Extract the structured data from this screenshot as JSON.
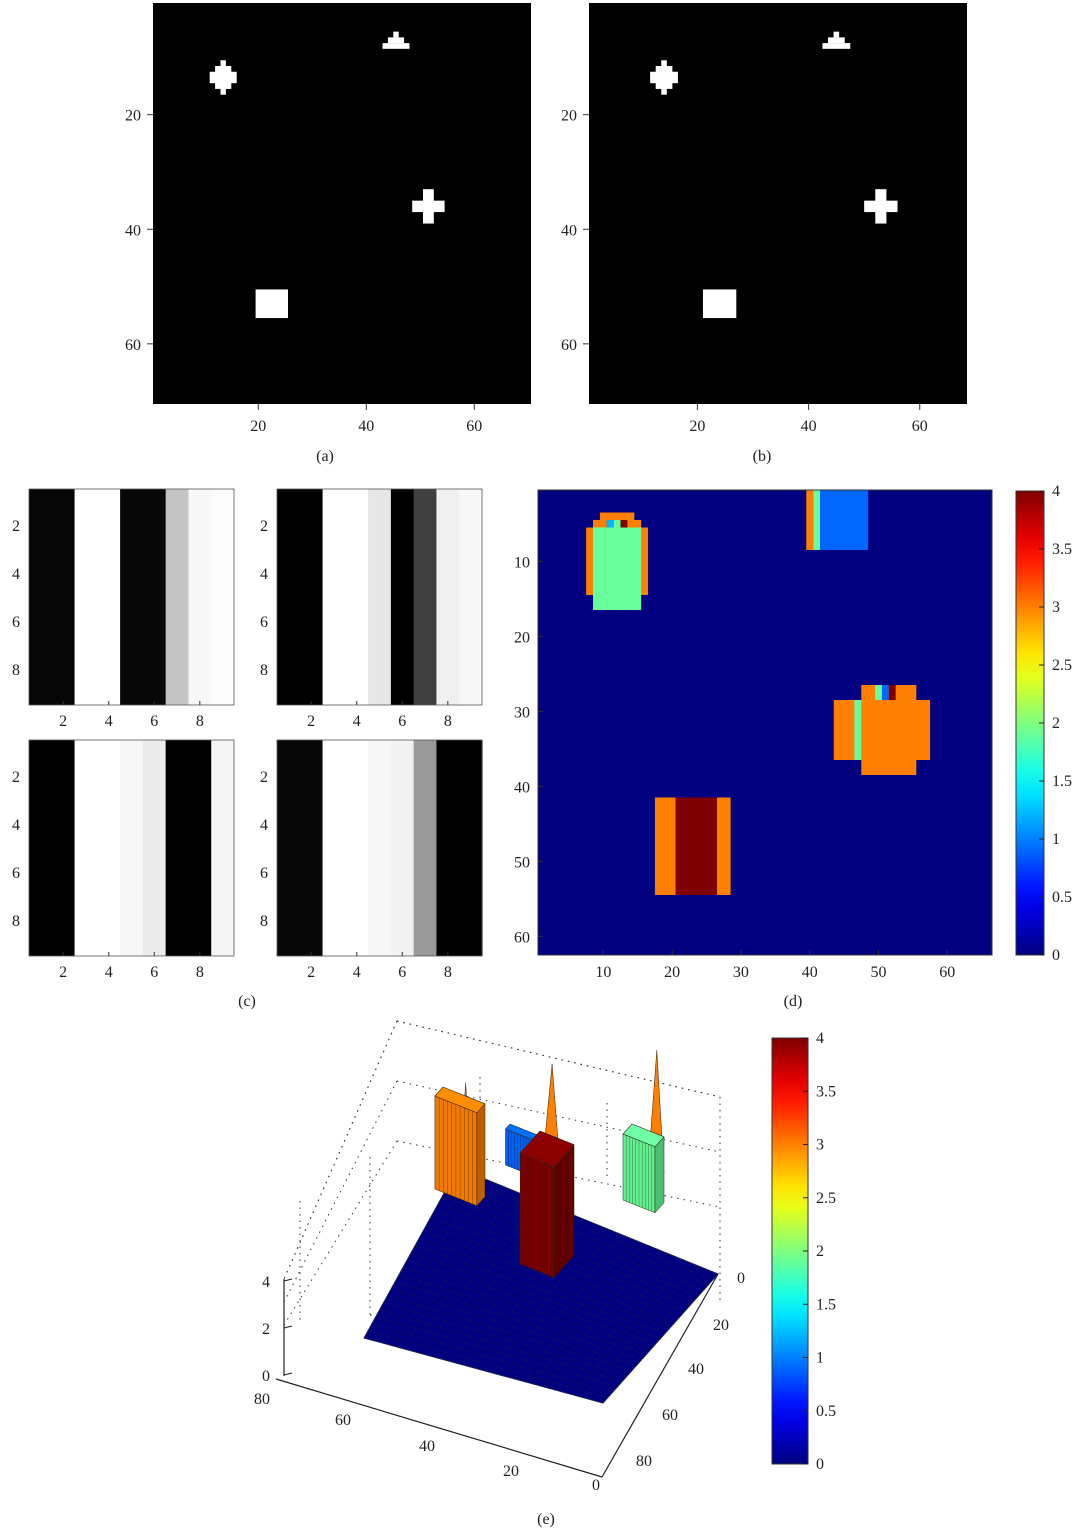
{
  "figure": {
    "captions": [
      "(a)",
      "(b)",
      "(c)",
      "(d)",
      "(e)"
    ]
  },
  "chart_data": [
    {
      "id": "a",
      "type": "heatmap",
      "title": "",
      "colormap": "gray",
      "xlim": [
        0.5,
        70.5
      ],
      "ylim": [
        0.5,
        70.5
      ],
      "xticks": [
        20,
        40,
        60
      ],
      "yticks": [
        20,
        40,
        60
      ],
      "background_value": 0,
      "objects": [
        {
          "shape": "diamond-cross",
          "cx": 13.5,
          "cy": 13.5
        },
        {
          "shape": "triangle",
          "cx": 45.5,
          "cy": 7.5
        },
        {
          "shape": "cross",
          "cx": 51.5,
          "cy": 36
        },
        {
          "shape": "rectangle",
          "x1": 19.5,
          "x2": 25.5,
          "y1": 50.5,
          "y2": 55.5
        }
      ]
    },
    {
      "id": "b",
      "type": "heatmap",
      "title": "",
      "colormap": "gray",
      "xlim": [
        0.5,
        68.5
      ],
      "ylim": [
        0.5,
        70.5
      ],
      "xticks": [
        20,
        40,
        60
      ],
      "yticks": [
        20,
        40,
        60
      ],
      "background_value": 0,
      "objects": [
        {
          "shape": "diamond-cross",
          "cx": 14,
          "cy": 13.5
        },
        {
          "shape": "triangle",
          "cx": 45,
          "cy": 7.5
        },
        {
          "shape": "cross",
          "cx": 53,
          "cy": 36
        },
        {
          "shape": "rectangle",
          "x1": 21,
          "x2": 27,
          "y1": 50.5,
          "y2": 55.5
        }
      ]
    },
    {
      "id": "c",
      "type": "heatmap",
      "title": "",
      "colormap": "gray",
      "xlim": [
        0.5,
        9.5
      ],
      "ylim": [
        0.5,
        9.5
      ],
      "xticks": [
        2,
        4,
        6,
        8
      ],
      "yticks": [
        2,
        4,
        6,
        8
      ],
      "panels": [
        {
          "columns": [
            0.02,
            0.02,
            1.0,
            1.0,
            0.03,
            0.03,
            0.77,
            0.97,
            0.99
          ]
        },
        {
          "columns": [
            0.0,
            0.0,
            1.0,
            1.0,
            0.9,
            0.0,
            0.25,
            0.94,
            0.97
          ]
        },
        {
          "columns": [
            0.0,
            0.0,
            1.0,
            1.0,
            0.97,
            0.92,
            0.0,
            0.0,
            0.96
          ]
        },
        {
          "columns": [
            0.03,
            0.03,
            1.0,
            1.0,
            0.97,
            0.95,
            0.6,
            0.0,
            0.0
          ]
        }
      ]
    },
    {
      "id": "d",
      "type": "heatmap",
      "title": "",
      "colormap": "jet",
      "xlim": [
        0.5,
        66.5
      ],
      "ylim": [
        0.5,
        62.5
      ],
      "xticks": [
        10,
        20,
        30,
        40,
        50,
        60
      ],
      "yticks": [
        10,
        20,
        30,
        40,
        50,
        60
      ],
      "clim": [
        0,
        4
      ],
      "colorbar_ticks": [
        0,
        0.5,
        1,
        1.5,
        2,
        2.5,
        3,
        3.5,
        4
      ],
      "background_value": 0,
      "regions": [
        {
          "x1": 9.5,
          "x2": 14.5,
          "y1": 3.5,
          "y2": 4.5,
          "value": 3
        },
        {
          "x1": 8.5,
          "x2": 10.5,
          "y1": 4.5,
          "y2": 5.5,
          "value": 3
        },
        {
          "x1": 10.5,
          "x2": 11.5,
          "y1": 4.5,
          "y2": 5.5,
          "value": 1.2
        },
        {
          "x1": 11.5,
          "x2": 12.5,
          "y1": 4.5,
          "y2": 5.5,
          "value": 1.9
        },
        {
          "x1": 12.5,
          "x2": 13.5,
          "y1": 4.5,
          "y2": 5.5,
          "value": 4
        },
        {
          "x1": 13.5,
          "x2": 15.5,
          "y1": 4.5,
          "y2": 5.5,
          "value": 3
        },
        {
          "x1": 7.5,
          "x2": 16.5,
          "y1": 5.5,
          "y2": 14.5,
          "value": 3
        },
        {
          "x1": 8.5,
          "x2": 15.5,
          "y1": 5.5,
          "y2": 16.5,
          "value": 1.9
        },
        {
          "x1": 39.5,
          "x2": 40.5,
          "y1": 0.5,
          "y2": 8.5,
          "value": 3
        },
        {
          "x1": 40.5,
          "x2": 41.5,
          "y1": 0.5,
          "y2": 8.5,
          "value": 1.9
        },
        {
          "x1": 41.5,
          "x2": 48.5,
          "y1": 0.5,
          "y2": 8.5,
          "value": 0.9
        },
        {
          "x1": 47.5,
          "x2": 55.5,
          "y1": 26.5,
          "y2": 28.5,
          "value": 3
        },
        {
          "x1": 43.5,
          "x2": 57.5,
          "y1": 28.5,
          "y2": 36.5,
          "value": 3
        },
        {
          "x1": 47.5,
          "x2": 55.5,
          "y1": 36.5,
          "y2": 38.5,
          "value": 3
        },
        {
          "x1": 49.5,
          "x2": 50.5,
          "y1": 26.5,
          "y2": 28.5,
          "value": 1.9
        },
        {
          "x1": 50.5,
          "x2": 51.5,
          "y1": 26.5,
          "y2": 28.5,
          "value": 0.9
        },
        {
          "x1": 51.5,
          "x2": 52.5,
          "y1": 26.5,
          "y2": 28.5,
          "value": 4
        },
        {
          "x1": 46.5,
          "x2": 47.5,
          "y1": 28.5,
          "y2": 36.5,
          "value": 1.9
        },
        {
          "x1": 17.5,
          "x2": 20.5,
          "y1": 41.5,
          "y2": 54.5,
          "value": 3
        },
        {
          "x1": 26.5,
          "x2": 28.5,
          "y1": 41.5,
          "y2": 54.5,
          "value": 3
        },
        {
          "x1": 20.5,
          "x2": 26.5,
          "y1": 41.5,
          "y2": 54.5,
          "value": 4
        }
      ]
    },
    {
      "id": "e",
      "type": "surface",
      "title": "",
      "colormap": "jet",
      "clim": [
        0,
        4
      ],
      "zlim": [
        0,
        4
      ],
      "axis_x_ticks": [
        0,
        20,
        40,
        60,
        80
      ],
      "axis_y_ticks": [
        0,
        20,
        40,
        60,
        80
      ],
      "zticks": [
        0,
        2,
        4
      ],
      "colorbar_ticks": [
        0,
        0.5,
        1,
        1.5,
        2,
        2.5,
        3,
        3.5,
        4
      ],
      "blocks": [
        {
          "value": 3,
          "height": 3.1
        },
        {
          "value": 0.9,
          "height": 1.2
        },
        {
          "value": 1.9,
          "height": 2.2
        },
        {
          "value": 4,
          "height": 3.7
        }
      ],
      "spikes": [
        {
          "value": 3,
          "height": 4.0
        },
        {
          "value": 3,
          "height": 3.8
        },
        {
          "value": 3,
          "height": 3.4
        }
      ]
    }
  ]
}
